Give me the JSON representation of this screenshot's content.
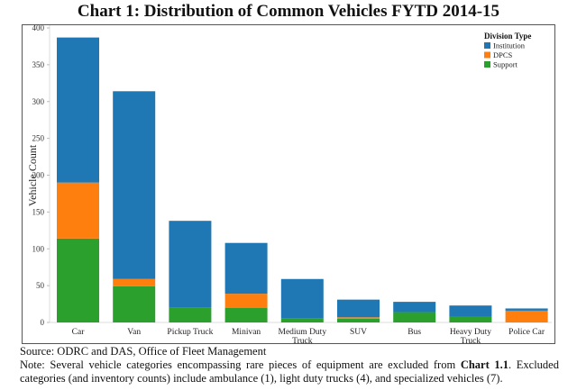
{
  "chart_data": {
    "type": "bar",
    "stacked": true,
    "title": "Chart 1: Distribution of Common Vehicles FYTD 2014-15",
    "xlabel": "",
    "ylabel": "Vehicle Count",
    "ylim": [
      0,
      400
    ],
    "yticks": [
      0,
      50,
      100,
      150,
      200,
      250,
      300,
      350,
      400
    ],
    "grid": false,
    "categories": [
      "Car",
      "Van",
      "Pickup Truck",
      "Minivan",
      "Medium Duty Truck",
      "SUV",
      "Bus",
      "Heavy Duty Truck",
      "Police Car"
    ],
    "category_lines": [
      [
        "Car"
      ],
      [
        "Van"
      ],
      [
        "Pickup Truck"
      ],
      [
        "Minivan"
      ],
      [
        "Medium Duty",
        "Truck"
      ],
      [
        "SUV"
      ],
      [
        "Bus"
      ],
      [
        "Heavy Duty",
        "Truck"
      ],
      [
        "Police Car"
      ]
    ],
    "series": [
      {
        "name": "Support",
        "color": "#2ca02c",
        "values": [
          114,
          49,
          20,
          20,
          6,
          5,
          14,
          8,
          0
        ]
      },
      {
        "name": "DPCS",
        "color": "#ff7f0e",
        "values": [
          76,
          10,
          0,
          19,
          0,
          2,
          0,
          0,
          16
        ]
      },
      {
        "name": "Institution",
        "color": "#1f77b4",
        "values": [
          197,
          255,
          118,
          69,
          53,
          24,
          14,
          15,
          3
        ]
      }
    ],
    "legend": {
      "title": "Division Type",
      "position": "top-right",
      "entries": [
        "Institution",
        "DPCS",
        "Support"
      ]
    }
  },
  "footer": {
    "source": "Source: ODRC and DAS, Office of Fleet Management",
    "note_before": "Note: Several vehicle categories encompassing rare pieces of equipment are excluded from ",
    "note_bold": "Chart 1.1",
    "note_after": ". Excluded categories (and inventory counts) include ambulance (1), light duty trucks (4), and specialized vehicles (7)."
  }
}
